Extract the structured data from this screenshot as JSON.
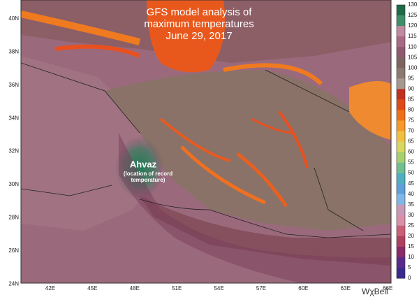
{
  "title": [
    "GFS model analysis of",
    "maximum temperatures",
    "June 29, 2017"
  ],
  "annotation": {
    "label": "Ahvaz",
    "note": [
      "(location of record",
      "temperature)"
    ]
  },
  "lat_labels": [
    "40N",
    "38N",
    "36N",
    "34N",
    "32N",
    "30N",
    "28N",
    "26N",
    "24N"
  ],
  "lon_labels": [
    "42E",
    "45E",
    "48E",
    "51E",
    "54E",
    "57E",
    "60E",
    "63E",
    "66E"
  ],
  "colorbar": {
    "ticks": [
      130,
      125,
      120,
      115,
      110,
      105,
      100,
      95,
      90,
      85,
      80,
      75,
      70,
      65,
      60,
      55,
      50,
      45,
      40,
      35,
      30,
      25,
      20,
      15,
      10,
      5,
      0
    ],
    "colors": [
      "#1e6b4a",
      "#3f8f6a",
      "#c08aa0",
      "#a86a86",
      "#8e5a70",
      "#7e6460",
      "#8b7a70",
      "#a89890",
      "#c03020",
      "#e04a18",
      "#f07018",
      "#f79a28",
      "#f2c040",
      "#d8d860",
      "#a8d070",
      "#70c090",
      "#50b0c0",
      "#60a0d8",
      "#7fb8e8",
      "#c89ab8",
      "#d890a8",
      "#c86078",
      "#b04060",
      "#8a2a6a",
      "#5a2a8a",
      "#3a2a90"
    ]
  },
  "logo": "WχBell"
}
